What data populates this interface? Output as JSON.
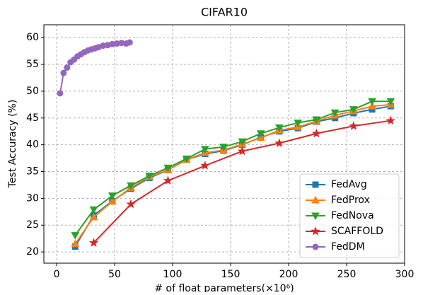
{
  "chart_data": {
    "type": "line",
    "title": "CIFAR10",
    "x_label": "# of float parameters(×10⁶)",
    "y_label": "Test Accuracy (%)",
    "xlim": [
      -11,
      300
    ],
    "ylim": [
      17.9,
      62.4
    ],
    "xticks": [
      0,
      50,
      100,
      150,
      200,
      250,
      300
    ],
    "yticks": [
      20,
      25,
      30,
      35,
      40,
      45,
      50,
      55,
      60
    ],
    "grid": true,
    "legend": "lower right",
    "series": [
      {
        "name": "FedAvg",
        "color": "#1f77b4",
        "marker": "square",
        "x": [
          16,
          32,
          48,
          64,
          80,
          96,
          112,
          128,
          144,
          160,
          176,
          192,
          208,
          224,
          240,
          256,
          272,
          288
        ],
        "values": [
          21.0,
          26.8,
          29.5,
          31.8,
          33.8,
          35.3,
          37.2,
          38.3,
          38.9,
          40.0,
          41.4,
          42.5,
          43.1,
          44.3,
          45.0,
          45.9,
          46.6,
          47.2
        ]
      },
      {
        "name": "FedProx",
        "color": "#ff7f0e",
        "marker": "triangle-up",
        "x": [
          16,
          32,
          48,
          64,
          80,
          96,
          112,
          128,
          144,
          160,
          176,
          192,
          208,
          224,
          240,
          256,
          272,
          288
        ],
        "values": [
          21.5,
          26.5,
          29.4,
          32.0,
          34.0,
          35.3,
          37.2,
          38.5,
          39.0,
          40.1,
          41.3,
          42.7,
          43.3,
          44.4,
          45.5,
          46.3,
          47.2,
          47.5
        ]
      },
      {
        "name": "FedNova",
        "color": "#2ca02c",
        "marker": "triangle-down",
        "x": [
          16,
          32,
          48,
          64,
          80,
          96,
          112,
          128,
          144,
          160,
          176,
          192,
          208,
          224,
          240,
          256,
          272,
          288
        ],
        "values": [
          23.1,
          27.9,
          30.5,
          32.4,
          34.2,
          35.7,
          37.4,
          39.2,
          39.6,
          40.6,
          42.1,
          43.2,
          44.1,
          44.7,
          46.0,
          46.6,
          48.1,
          48.1
        ]
      },
      {
        "name": "SCAFFOLD",
        "color": "#d62728",
        "marker": "star",
        "x": [
          32,
          64,
          96,
          128,
          160,
          192,
          224,
          256,
          288
        ],
        "values": [
          21.7,
          28.9,
          33.3,
          36.1,
          38.8,
          40.3,
          42.1,
          43.5,
          44.5
        ]
      },
      {
        "name": "FedDM",
        "color": "#9467bd",
        "marker": "circle",
        "x": [
          3,
          6,
          9,
          12,
          15,
          18,
          21,
          24,
          27,
          30,
          33,
          36,
          40,
          44,
          48,
          52,
          56,
          60,
          63
        ],
        "values": [
          49.6,
          53.4,
          54.4,
          55.4,
          55.9,
          56.5,
          56.9,
          57.3,
          57.6,
          57.8,
          58.0,
          58.2,
          58.5,
          58.6,
          58.8,
          58.9,
          59.0,
          58.9,
          59.1
        ]
      }
    ]
  }
}
